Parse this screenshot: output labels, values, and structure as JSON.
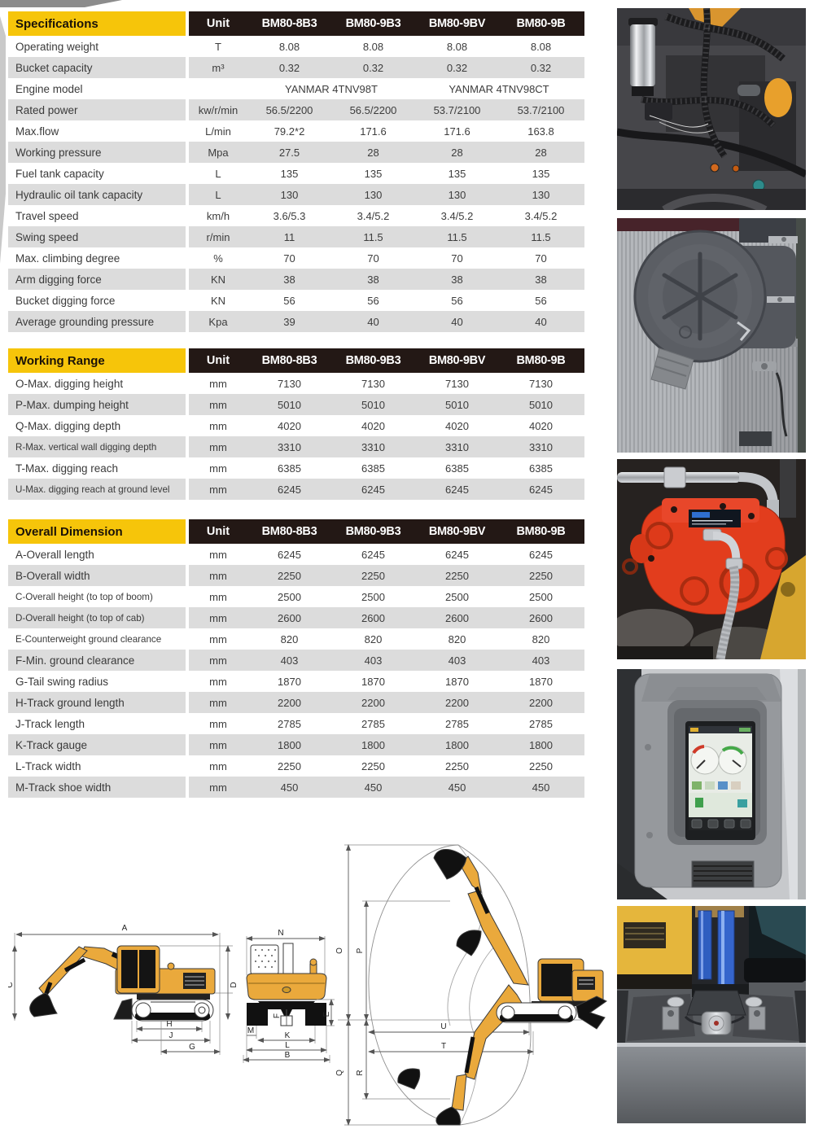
{
  "colors": {
    "accent_yellow": "#f6c50a",
    "header_black": "#231815",
    "row_stripe": "#dcdcdc",
    "machine_yellow": "#eaa93c",
    "pump_red": "#e23d1d"
  },
  "tables": [
    {
      "title": "Specifications",
      "columns": [
        "Unit",
        "BM80-8B3",
        "BM80-9B3",
        "BM80-9BV",
        "BM80-9B"
      ],
      "rows": [
        {
          "label": "Operating weight",
          "unit": "T",
          "values": [
            "8.08",
            "8.08",
            "8.08",
            "8.08"
          ]
        },
        {
          "label": "Bucket capacity",
          "unit": "m³",
          "values": [
            "0.32",
            "0.32",
            "0.32",
            "0.32"
          ]
        },
        {
          "label": "Engine model",
          "unit": "",
          "span_values": [
            "YANMAR 4TNV98T",
            "YANMAR 4TNV98CT"
          ]
        },
        {
          "label": "Rated power",
          "unit": "kw/r/min",
          "values": [
            "56.5/2200",
            "56.5/2200",
            "53.7/2100",
            "53.7/2100"
          ]
        },
        {
          "label": "Max.flow",
          "unit": "L/min",
          "values": [
            "79.2*2",
            "171.6",
            "171.6",
            "163.8"
          ]
        },
        {
          "label": "Working pressure",
          "unit": "Mpa",
          "values": [
            "27.5",
            "28",
            "28",
            "28"
          ]
        },
        {
          "label": "Fuel tank capacity",
          "unit": "L",
          "values": [
            "135",
            "135",
            "135",
            "135"
          ]
        },
        {
          "label": "Hydraulic oil tank capacity",
          "unit": "L",
          "values": [
            "130",
            "130",
            "130",
            "130"
          ]
        },
        {
          "label": "Travel speed",
          "unit": "km/h",
          "values": [
            "3.6/5.3",
            "3.4/5.2",
            "3.4/5.2",
            "3.4/5.2"
          ]
        },
        {
          "label": "Swing speed",
          "unit": "r/min",
          "values": [
            "11",
            "11.5",
            "11.5",
            "11.5"
          ]
        },
        {
          "label": "Max. climbing degree",
          "unit": "%",
          "values": [
            "70",
            "70",
            "70",
            "70"
          ]
        },
        {
          "label": "Arm digging force",
          "unit": "KN",
          "values": [
            "38",
            "38",
            "38",
            "38"
          ]
        },
        {
          "label": "Bucket digging force",
          "unit": "KN",
          "values": [
            "56",
            "56",
            "56",
            "56"
          ]
        },
        {
          "label": "Average grounding pressure",
          "unit": "Kpa",
          "values": [
            "39",
            "40",
            "40",
            "40"
          ]
        }
      ]
    },
    {
      "title": "Working Range",
      "columns": [
        "Unit",
        "BM80-8B3",
        "BM80-9B3",
        "BM80-9BV",
        "BM80-9B"
      ],
      "rows": [
        {
          "label": "O-Max. digging height",
          "unit": "mm",
          "values": [
            "7130",
            "7130",
            "7130",
            "7130"
          ]
        },
        {
          "label": "P-Max. dumping height",
          "unit": "mm",
          "values": [
            "5010",
            "5010",
            "5010",
            "5010"
          ]
        },
        {
          "label": "Q-Max. digging depth",
          "unit": "mm",
          "values": [
            "4020",
            "4020",
            "4020",
            "4020"
          ]
        },
        {
          "label": "R-Max. vertical wall digging depth",
          "unit": "mm",
          "values": [
            "3310",
            "3310",
            "3310",
            "3310"
          ]
        },
        {
          "label": "T-Max. digging reach",
          "unit": "mm",
          "values": [
            "6385",
            "6385",
            "6385",
            "6385"
          ]
        },
        {
          "label": "U-Max. digging reach at ground level",
          "unit": "mm",
          "values": [
            "6245",
            "6245",
            "6245",
            "6245"
          ]
        }
      ]
    },
    {
      "title": "Overall Dimension",
      "columns": [
        "Unit",
        "BM80-8B3",
        "BM80-9B3",
        "BM80-9BV",
        "BM80-9B"
      ],
      "rows": [
        {
          "label": "A-Overall length",
          "unit": "mm",
          "values": [
            "6245",
            "6245",
            "6245",
            "6245"
          ]
        },
        {
          "label": "B-Overall width",
          "unit": "mm",
          "values": [
            "2250",
            "2250",
            "2250",
            "2250"
          ]
        },
        {
          "label": "C-Overall height (to top of boom)",
          "unit": "mm",
          "values": [
            "2500",
            "2500",
            "2500",
            "2500"
          ]
        },
        {
          "label": "D-Overall height (to top of cab)",
          "unit": "mm",
          "values": [
            "2600",
            "2600",
            "2600",
            "2600"
          ]
        },
        {
          "label": "E-Counterweight ground clearance",
          "unit": "mm",
          "values": [
            "820",
            "820",
            "820",
            "820"
          ]
        },
        {
          "label": "F-Min. ground clearance",
          "unit": "mm",
          "values": [
            "403",
            "403",
            "403",
            "403"
          ]
        },
        {
          "label": "G-Tail swing radius",
          "unit": "mm",
          "values": [
            "1870",
            "1870",
            "1870",
            "1870"
          ]
        },
        {
          "label": "H-Track ground length",
          "unit": "mm",
          "values": [
            "2200",
            "2200",
            "2200",
            "2200"
          ]
        },
        {
          "label": "J-Track length",
          "unit": "mm",
          "values": [
            "2785",
            "2785",
            "2785",
            "2785"
          ]
        },
        {
          "label": "K-Track gauge",
          "unit": "mm",
          "values": [
            "1800",
            "1800",
            "1800",
            "1800"
          ]
        },
        {
          "label": "L-Track width",
          "unit": "mm",
          "values": [
            "2250",
            "2250",
            "2250",
            "2250"
          ]
        },
        {
          "label": "M-Track shoe width",
          "unit": "mm",
          "values": [
            "450",
            "450",
            "450",
            "450"
          ]
        }
      ]
    }
  ],
  "diagrams": {
    "side": {
      "a": "A",
      "c": "C",
      "d": "D",
      "h": "H",
      "j": "J",
      "g": "G"
    },
    "rear": {
      "n": "N",
      "e": "E",
      "f": "F",
      "m": "M",
      "k": "K",
      "l": "L",
      "b": "B"
    },
    "range": {
      "o": "O",
      "p": "P",
      "q": "Q",
      "r": "R",
      "u": "U",
      "t": "T"
    }
  },
  "photos": [
    "engine-bay",
    "air-filter-and-radiator",
    "hydraulic-pump",
    "cab-pillar-monitor",
    "undercarriage"
  ]
}
